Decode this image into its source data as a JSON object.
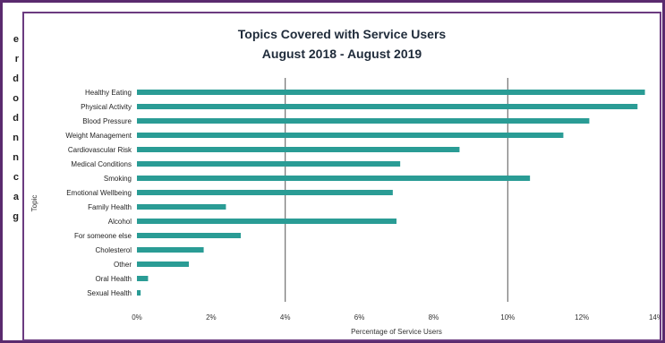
{
  "side_text": [
    "e",
    "r",
    "d",
    "o",
    "d",
    "n",
    "n",
    "c",
    "a",
    "g"
  ],
  "chart_data": {
    "type": "bar",
    "orientation": "horizontal",
    "title": "Topics Covered with Service Users",
    "subtitle": "August 2018 - August 2019",
    "xlabel": "Percentage of Service Users",
    "ylabel": "Topic",
    "categories": [
      "Healthy Eating",
      "Physical Activity",
      "Blood Pressure",
      "Weight Management",
      "Cardiovascular Risk",
      "Medical Conditions",
      "Smoking",
      "Emotional Wellbeing",
      "Family Health",
      "Alcohol",
      "For someone else",
      "Cholesterol",
      "Other",
      "Oral Health",
      "Sexual Health"
    ],
    "values": [
      13.7,
      13.5,
      12.2,
      11.5,
      8.7,
      7.1,
      10.6,
      6.9,
      2.4,
      7.0,
      2.8,
      1.8,
      1.4,
      0.3,
      0.1
    ],
    "xlim": [
      0,
      14
    ],
    "xticks": [
      0,
      2,
      4,
      6,
      8,
      10,
      12,
      14
    ],
    "xtick_labels": [
      "0%",
      "2%",
      "4%",
      "6%",
      "8%",
      "10%",
      "12%",
      "14%"
    ],
    "major_gridlines": [
      4,
      10
    ],
    "bar_color": "#2a9c95",
    "gridline_color": "#555555",
    "legend": "none"
  },
  "colors": {
    "frame": "#5a2a6e",
    "bar": "#2a9c95"
  }
}
